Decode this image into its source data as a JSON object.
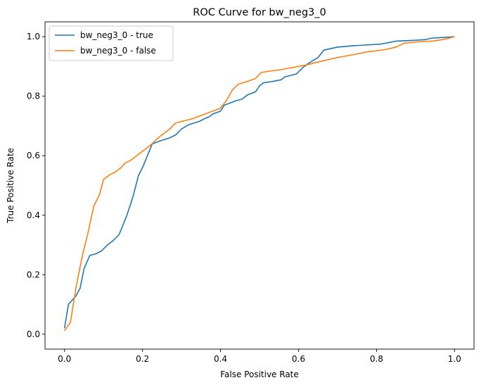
{
  "chart_data": {
    "type": "line",
    "title": "ROC Curve for bw_neg3_0",
    "xlabel": "False Positive Rate",
    "ylabel": "True Positive Rate",
    "xlim": [
      -0.05,
      1.05
    ],
    "ylim": [
      -0.05,
      1.05
    ],
    "xticks": [
      0.0,
      0.2,
      0.4,
      0.6,
      0.8,
      1.0
    ],
    "xtick_labels": [
      "0.0",
      "0.2",
      "0.4",
      "0.6",
      "0.8",
      "1.0"
    ],
    "yticks": [
      0.0,
      0.2,
      0.4,
      0.6,
      0.8,
      1.0
    ],
    "ytick_labels": [
      "0.0",
      "0.2",
      "0.4",
      "0.6",
      "0.8",
      "1.0"
    ],
    "grid": false,
    "legend": "top-left",
    "series": [
      {
        "name": "bw_neg3_0 - true",
        "color": "#1f77b4",
        "x": [
          0.0,
          0.01,
          0.03,
          0.04,
          0.05,
          0.065,
          0.08,
          0.095,
          0.11,
          0.125,
          0.14,
          0.16,
          0.175,
          0.19,
          0.2,
          0.225,
          0.25,
          0.27,
          0.285,
          0.3,
          0.32,
          0.345,
          0.36,
          0.37,
          0.38,
          0.4,
          0.41,
          0.42,
          0.44,
          0.455,
          0.47,
          0.49,
          0.5,
          0.51,
          0.535,
          0.555,
          0.565,
          0.58,
          0.595,
          0.61,
          0.625,
          0.65,
          0.665,
          0.7,
          0.745,
          0.81,
          0.85,
          0.9,
          0.925,
          0.94,
          0.98,
          1.0
        ],
        "y": [
          0.02,
          0.1,
          0.13,
          0.155,
          0.22,
          0.265,
          0.27,
          0.28,
          0.3,
          0.315,
          0.335,
          0.4,
          0.46,
          0.535,
          0.56,
          0.64,
          0.652,
          0.66,
          0.67,
          0.69,
          0.705,
          0.715,
          0.725,
          0.73,
          0.74,
          0.75,
          0.77,
          0.775,
          0.785,
          0.79,
          0.805,
          0.815,
          0.835,
          0.845,
          0.85,
          0.855,
          0.865,
          0.87,
          0.875,
          0.895,
          0.91,
          0.93,
          0.955,
          0.965,
          0.97,
          0.975,
          0.985,
          0.988,
          0.99,
          0.995,
          0.998,
          1.0
        ]
      },
      {
        "name": "bw_neg3_0 - false",
        "color": "#ff7f0e",
        "x": [
          0.0,
          0.015,
          0.03,
          0.045,
          0.06,
          0.075,
          0.09,
          0.1,
          0.115,
          0.13,
          0.145,
          0.155,
          0.17,
          0.185,
          0.2,
          0.22,
          0.245,
          0.27,
          0.285,
          0.3,
          0.33,
          0.36,
          0.38,
          0.4,
          0.415,
          0.43,
          0.445,
          0.47,
          0.49,
          0.505,
          0.53,
          0.55,
          0.57,
          0.6,
          0.62,
          0.65,
          0.7,
          0.75,
          0.78,
          0.82,
          0.85,
          0.87,
          0.9,
          0.95,
          0.98,
          1.0
        ],
        "y": [
          0.012,
          0.04,
          0.16,
          0.26,
          0.34,
          0.43,
          0.47,
          0.52,
          0.535,
          0.545,
          0.56,
          0.575,
          0.585,
          0.6,
          0.615,
          0.635,
          0.665,
          0.69,
          0.71,
          0.715,
          0.725,
          0.74,
          0.75,
          0.76,
          0.785,
          0.82,
          0.84,
          0.85,
          0.86,
          0.88,
          0.885,
          0.888,
          0.893,
          0.9,
          0.905,
          0.915,
          0.93,
          0.942,
          0.95,
          0.956,
          0.965,
          0.978,
          0.982,
          0.986,
          0.993,
          1.0
        ]
      }
    ]
  }
}
